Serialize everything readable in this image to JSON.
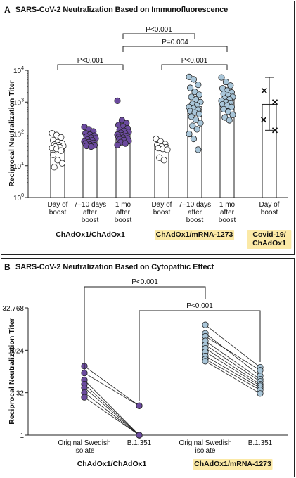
{
  "panel_a": {
    "letter": "A",
    "title": "SARS-CoV-2 Neutralization Based on Immunofluorescence"
  },
  "panel_b": {
    "letter": "B",
    "title": "SARS-CoV-2 Neutralization Based on Cytopathic Effect"
  },
  "colors": {
    "light_marker": "#ffffff",
    "purple_marker": "#6b4a9e",
    "blue_marker": "#a9c6d9",
    "highlight": "#fbe9a6",
    "axis": "#222222"
  },
  "chart_data": [
    {
      "type": "bar",
      "scale": "log10",
      "ylabel": "Reciprocal Neutralization Titer",
      "ylim": [
        1,
        10000
      ],
      "yticks": [
        {
          "value": 1,
          "base": "10",
          "exp": "0"
        },
        {
          "value": 10,
          "base": "10",
          "exp": "1"
        },
        {
          "value": 100,
          "base": "10",
          "exp": "2"
        },
        {
          "value": 1000,
          "base": "10",
          "exp": "3"
        },
        {
          "value": 10000,
          "base": "10",
          "exp": "4"
        }
      ],
      "categories": [
        {
          "label": [
            "Day of",
            "boost"
          ],
          "group": 0,
          "bar": 38,
          "marker": "light",
          "points": [
            105,
            92,
            78,
            62,
            55,
            50,
            46,
            44,
            42,
            40,
            38,
            36,
            34,
            30,
            22,
            15,
            12,
            9
          ]
        },
        {
          "label": [
            "7–10 days",
            "after",
            "boost"
          ],
          "group": 0,
          "bar": 62,
          "marker": "purple",
          "points": [
            165,
            140,
            120,
            105,
            95,
            88,
            82,
            76,
            72,
            66,
            62,
            58,
            55,
            52,
            50,
            46,
            44,
            42,
            40
          ]
        },
        {
          "label": [
            "1 mo",
            "after",
            "boost"
          ],
          "group": 0,
          "bar": 95,
          "marker": "purple",
          "points": [
            1100,
            270,
            220,
            190,
            170,
            150,
            135,
            125,
            115,
            108,
            100,
            95,
            90,
            85,
            80,
            76,
            72,
            68,
            64,
            60,
            55,
            50,
            45
          ]
        },
        {
          "label": [
            "Day of",
            "boost"
          ],
          "group": 1,
          "bar": 38,
          "marker": "light",
          "points": [
            70,
            58,
            48,
            44,
            40,
            38,
            36,
            34,
            32,
            18,
            15
          ]
        },
        {
          "label": [
            "7–10 days",
            "after",
            "boost"
          ],
          "group": 1,
          "bar": 720,
          "marker": "blue",
          "points": [
            6200,
            5200,
            3500,
            2800,
            2100,
            1700,
            1450,
            1200,
            1000,
            880,
            780,
            700,
            640,
            580,
            520,
            470,
            420,
            350,
            280,
            220,
            180,
            140,
            100,
            70,
            32
          ]
        },
        {
          "label": [
            "1 mo",
            "after",
            "boost"
          ],
          "group": 1,
          "bar": 1250,
          "marker": "blue",
          "points": [
            6000,
            4300,
            3300,
            2700,
            2300,
            2000,
            1800,
            1600,
            1450,
            1300,
            1200,
            1100,
            1000,
            930,
            850,
            780,
            700,
            600,
            500,
            400,
            330,
            270
          ]
        },
        {
          "label": [
            "Day of",
            "boost"
          ],
          "group": 2,
          "bar": 850,
          "marker": "cross",
          "points": [
            2300,
            1000,
            280,
            130
          ],
          "error_high": 6000,
          "error_low": 130
        }
      ],
      "groups": [
        {
          "label": [
            "ChAdOx1/ChAdOx1"
          ],
          "highlight": false
        },
        {
          "label": [
            "ChAdOx1/mRNA-1273"
          ],
          "highlight": true
        },
        {
          "label": [
            "Covid-19/",
            "ChAdOx1"
          ],
          "highlight": true
        }
      ],
      "comparisons": [
        {
          "text": "P<0.001",
          "from": 2,
          "to": 4,
          "level": 0
        },
        {
          "text": "P=0.004",
          "from": 2,
          "to": 5,
          "level": 1
        },
        {
          "text": "P<0.001",
          "from": 0,
          "to": 2,
          "level": 2
        },
        {
          "text": "P<0.001",
          "from": 3,
          "to": 5,
          "level": 2
        }
      ]
    },
    {
      "type": "line",
      "scale": "log2",
      "ylabel": "Reciprocal Neutralization Titer",
      "ylim": [
        1,
        32768
      ],
      "yticks": [
        1,
        32,
        1024,
        32768
      ],
      "ytick_labels": [
        "1",
        "32",
        "1024",
        "32,768"
      ],
      "x_labels": [
        [
          "Original Swedish",
          "isolate"
        ],
        [
          "B.1.351"
        ],
        [
          "Original Swedish",
          "isolate"
        ],
        [
          "B.1.351"
        ]
      ],
      "groups": [
        {
          "label": "ChAdOx1/ChAdOx1",
          "highlight": false,
          "marker": "purple",
          "pairs": [
            [
              280,
              11
            ],
            [
              160,
              11
            ],
            [
              90,
              1
            ],
            [
              64,
              1
            ],
            [
              48,
              1
            ],
            [
              32,
              1
            ],
            [
              22,
              1
            ]
          ]
        },
        {
          "label": "ChAdOx1/mRNA-1273",
          "highlight": true,
          "marker": "blue",
          "pairs": [
            [
              8192,
              256
            ],
            [
              4096,
              128
            ],
            [
              3200,
              200
            ],
            [
              2200,
              96
            ],
            [
              1600,
              80
            ],
            [
              1200,
              64
            ],
            [
              900,
              56
            ],
            [
              640,
              48
            ],
            [
              500,
              40
            ],
            [
              420,
              30
            ]
          ]
        }
      ],
      "comparisons": [
        {
          "text": "P<0.001",
          "from": 0,
          "to": 2,
          "level": 0
        },
        {
          "text": "P<0.001",
          "from": 1,
          "to": 3,
          "level": 1
        }
      ]
    }
  ]
}
